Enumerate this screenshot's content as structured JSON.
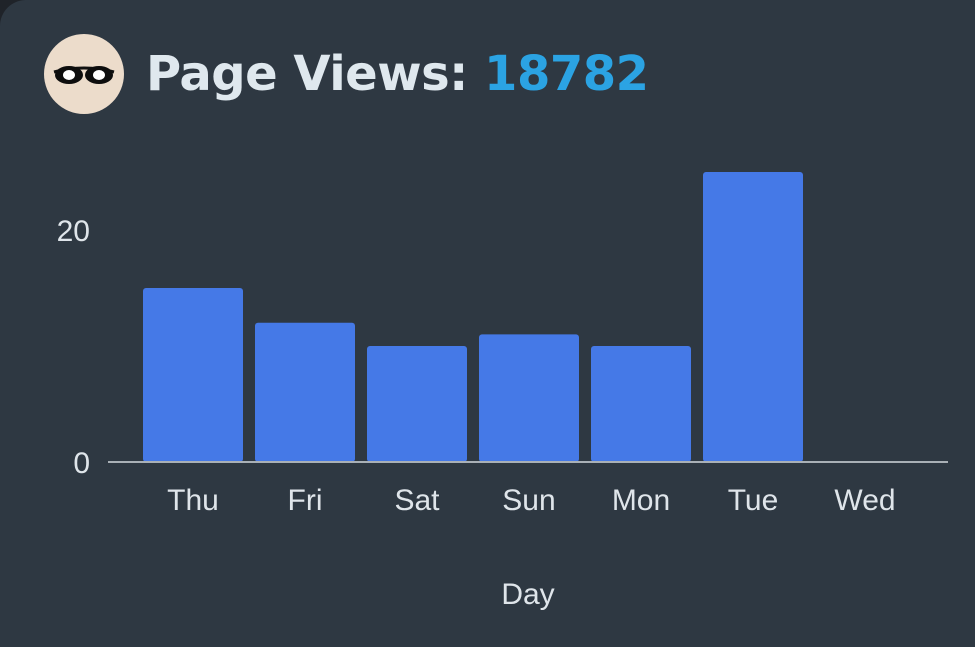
{
  "header": {
    "label": "Page Views:",
    "value": "18782",
    "avatar_icon": "sunglasses-icon"
  },
  "colors": {
    "background": "#2e3842",
    "bar": "#4579e7",
    "accent": "#2ba3e3",
    "text": "#dfe8ee",
    "axis": "#a9b0b6"
  },
  "chart_data": {
    "type": "bar",
    "categories": [
      "Thu",
      "Fri",
      "Sat",
      "Sun",
      "Mon",
      "Tue",
      "Wed"
    ],
    "values": [
      15,
      12,
      10,
      11,
      10,
      25,
      0
    ],
    "xlabel": "Day",
    "ylabel": "",
    "ylim": [
      0,
      25
    ],
    "yticks": [
      0,
      20
    ],
    "grid": false,
    "legend": "none"
  }
}
